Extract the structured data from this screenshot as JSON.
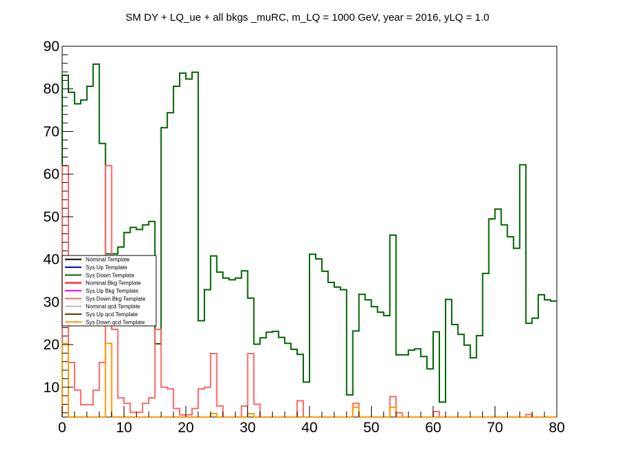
{
  "chart_data": {
    "type": "step",
    "title": "SM DY + LQ_ue + all bkgs _muRC, m_LQ = 1000 GeV, year = 2016, yLQ = 1.0",
    "xlabel": "",
    "ylabel": "",
    "xlim": [
      0,
      80
    ],
    "ylim": [
      3,
      90
    ],
    "x_ticks": [
      0,
      10,
      20,
      30,
      40,
      50,
      60,
      70,
      80
    ],
    "y_ticks": [
      10,
      20,
      30,
      40,
      50,
      60,
      70,
      80,
      90
    ],
    "grid": false,
    "legend_position": "left-middle",
    "bin_edges": [
      0,
      1,
      2,
      3,
      4,
      5,
      6,
      7,
      8,
      9,
      10,
      11,
      12,
      13,
      14,
      15,
      16,
      17,
      18,
      19,
      20,
      21,
      22,
      23,
      24,
      25,
      26,
      27,
      28,
      29,
      30,
      31,
      32,
      33,
      34,
      35,
      36,
      37,
      38,
      39,
      40,
      41,
      42,
      43,
      44,
      45,
      46,
      47,
      48,
      49,
      50,
      51,
      52,
      53,
      54,
      55,
      56,
      57,
      58,
      59,
      60,
      61,
      62,
      63,
      64,
      65,
      66,
      67,
      68,
      69,
      70,
      71,
      72,
      73,
      74,
      75,
      76,
      77,
      78,
      79,
      80
    ],
    "legend": [
      {
        "name": "Nominal Template",
        "color": "#000000"
      },
      {
        "name": "Sys Up Template",
        "color": "#0000ff"
      },
      {
        "name": "Sys Down Template",
        "color": "#006400"
      },
      {
        "name": "Nominal Bkg Template",
        "color": "#ff0000"
      },
      {
        "name": "Sys Up Bkg Template",
        "color": "#ff00ff"
      },
      {
        "name": "Sys Down Bkg Template",
        "color": "#ff6666"
      },
      {
        "name": "Nominal qcd Template",
        "color": "#bbbbbb"
      },
      {
        "name": "Sys Up qcd Template",
        "color": "#663300"
      },
      {
        "name": "Sys Down qcd Template",
        "color": "#ff9900"
      }
    ],
    "series": [
      {
        "name": "Sys Down Template",
        "color": "#006400",
        "values": [
          83.2,
          79.2,
          76.5,
          77.4,
          80.6,
          85.8,
          67.2,
          41.3,
          41.3,
          42.9,
          46.3,
          47.5,
          47.0,
          48.1,
          48.9,
          20.2,
          70.9,
          74.4,
          80.6,
          83.7,
          82.3,
          83.9,
          25.6,
          32.9,
          40.8,
          37.0,
          35.6,
          35.2,
          35.6,
          37.3,
          30.9,
          20.1,
          21.6,
          22.9,
          23.1,
          21.7,
          20.3,
          18.9,
          17.7,
          11.2,
          41.2,
          40.1,
          37.2,
          34.6,
          33.5,
          32.9,
          8.2,
          23.2,
          31.8,
          30.5,
          28.9,
          27.6,
          26.8,
          45.7,
          17.6,
          17.6,
          18.7,
          19.0,
          17.2,
          14.3,
          23.0,
          6.5,
          30.6,
          24.7,
          22.4,
          19.9,
          16.9,
          22.1,
          36.7,
          49.5,
          51.8,
          48.1,
          45.3,
          42.6,
          62.2,
          25.0,
          26.2,
          31.7,
          30.5,
          30.2
        ]
      },
      {
        "name": "Sys Down Bkg Template",
        "color": "#ff6666",
        "values": [
          62.0,
          15.8,
          9.3,
          5.9,
          5.9,
          9.3,
          15.8,
          62.0,
          23.6,
          7.5,
          6.2,
          4.1,
          4.1,
          6.2,
          7.5,
          23.6,
          10.0,
          9.6,
          5.0,
          3.5,
          3.5,
          5.0,
          9.6,
          10.0,
          17.9,
          5.6,
          0,
          0,
          0,
          5.6,
          17.9,
          6.0,
          0,
          0,
          0,
          0,
          0,
          0,
          6.8,
          0,
          0,
          0,
          0,
          0,
          0,
          0,
          0,
          6.2,
          0,
          0,
          0,
          0,
          0,
          7.8,
          4.0,
          0,
          0,
          0,
          0,
          0,
          4.3,
          0,
          0,
          0,
          0,
          0,
          0,
          0,
          0,
          0,
          0,
          0,
          0,
          0,
          0,
          3.6,
          0,
          0,
          0,
          0
        ]
      },
      {
        "name": "Sys Down qcd Template",
        "color": "#ff9900",
        "values": [
          20.3,
          0,
          0,
          0,
          0,
          0,
          0,
          20.3,
          0,
          0,
          0,
          0,
          0,
          0,
          0,
          0,
          0,
          0,
          0,
          0,
          0,
          0,
          0,
          0,
          3.8,
          0,
          0,
          0,
          0,
          0,
          3.8,
          0,
          0,
          0,
          0,
          0,
          0,
          0,
          0,
          0,
          0,
          0,
          0,
          0,
          0,
          0,
          0,
          5.3,
          0,
          0,
          0,
          0,
          0,
          5.3,
          0,
          0,
          0,
          0,
          0,
          0,
          0,
          0,
          0,
          0,
          0,
          0,
          0,
          0,
          0,
          0,
          0,
          0,
          0,
          0,
          0,
          0,
          0,
          0,
          0,
          0
        ]
      }
    ]
  }
}
